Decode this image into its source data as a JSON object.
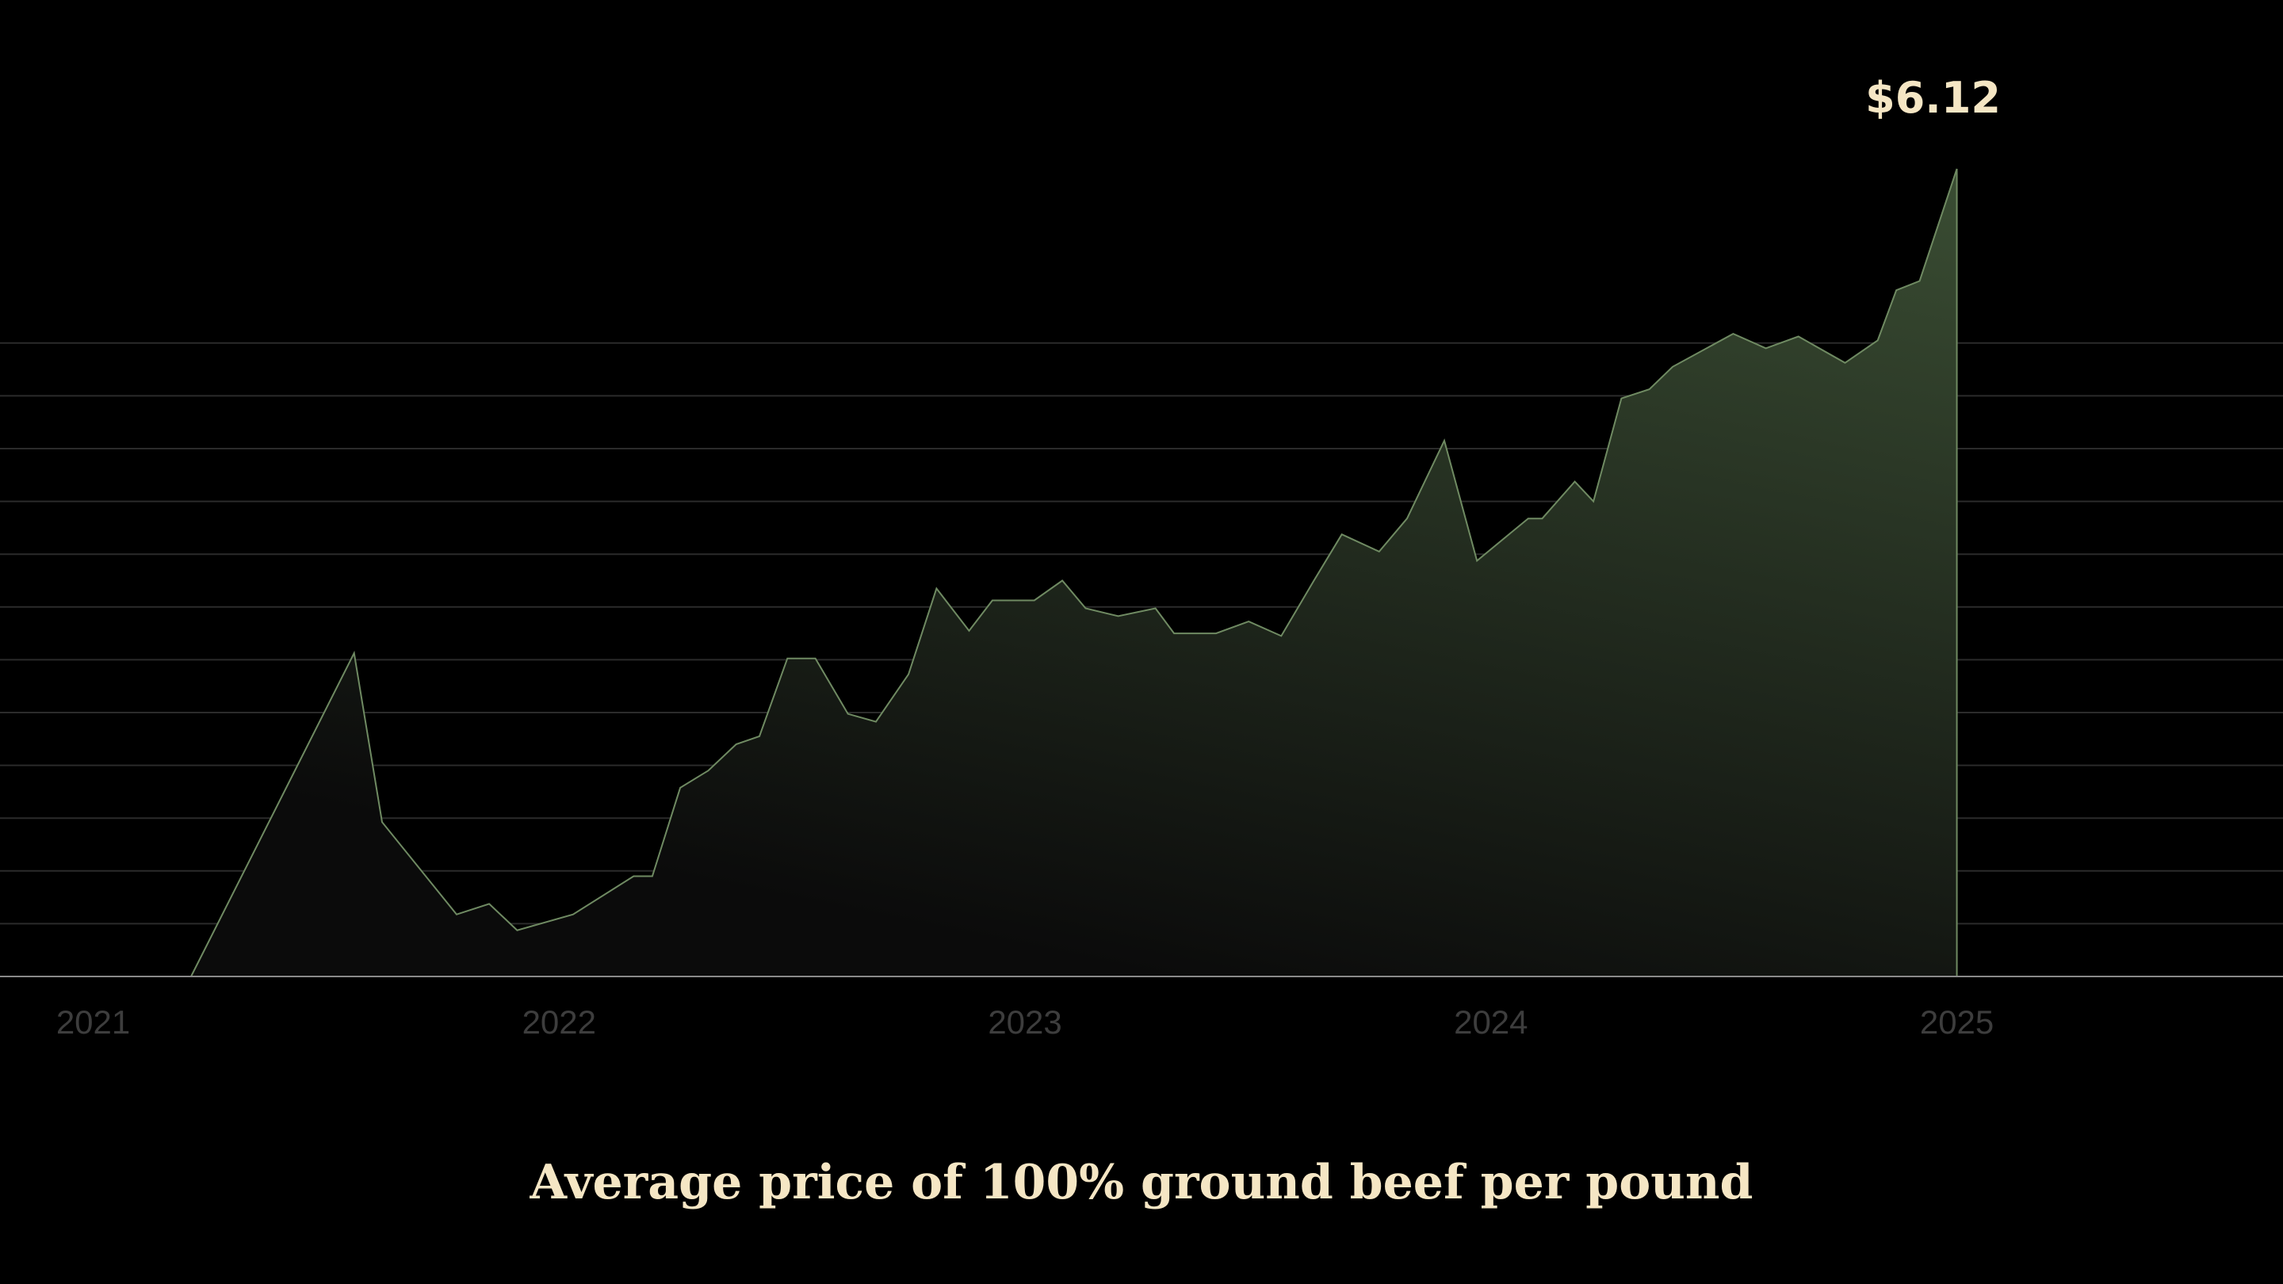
{
  "colors": {
    "background": "#000000",
    "fill_top": "#3a4d33",
    "fill_bottom": "#0b0b0b",
    "line": "#6f8a62",
    "grid": "#2b2b2b",
    "baseline": "#8a8a8a",
    "label": "#f5e6c4",
    "tick": "#3d3d3d"
  },
  "chart_data": {
    "type": "area",
    "title": "Average price of 100% ground beef per pound",
    "xlabel": "",
    "ylabel": "",
    "x_ticks": [
      "2021",
      "2022",
      "2023",
      "2024",
      "2025"
    ],
    "x_tick_values": [
      2021,
      2022,
      2023,
      2024,
      2025
    ],
    "xlim": [
      2020.8,
      2025.7
    ],
    "ylim": [
      0,
      6.12
    ],
    "grid": true,
    "grid_levels": [
      0.4,
      0.8,
      1.2,
      1.6,
      2.0,
      2.4,
      2.8,
      3.2,
      3.6,
      4.0,
      4.4,
      4.8
    ],
    "last_value_label": "$6.12",
    "series": [
      {
        "x": [
          2021.21,
          2021.56,
          2021.62,
          2021.78,
          2021.85,
          2021.91,
          2022.03,
          2022.16,
          2022.2,
          2022.26,
          2022.32,
          2022.38,
          2022.43,
          2022.49,
          2022.55,
          2022.62,
          2022.68,
          2022.75,
          2022.81,
          2022.88,
          2022.93,
          2023.02,
          2023.08,
          2023.13,
          2023.2,
          2023.28,
          2023.32,
          2023.41,
          2023.48,
          2023.55,
          2023.62,
          2023.68,
          2023.76,
          2023.82,
          2023.9,
          2023.97,
          2024.08,
          2024.11,
          2024.18,
          2024.22,
          2024.28,
          2024.34,
          2024.39,
          2024.52,
          2024.59,
          2024.66,
          2024.76,
          2024.83,
          2024.87,
          2024.92,
          2025.0
        ],
        "y": [
          0.0,
          2.45,
          1.17,
          0.47,
          0.55,
          0.35,
          0.47,
          0.76,
          0.76,
          1.43,
          1.56,
          1.76,
          1.82,
          2.41,
          2.41,
          1.99,
          1.93,
          2.29,
          2.94,
          2.62,
          2.85,
          2.85,
          3.0,
          2.79,
          2.73,
          2.79,
          2.6,
          2.6,
          2.69,
          2.58,
          3.0,
          3.35,
          3.22,
          3.47,
          4.06,
          3.15,
          3.47,
          3.47,
          3.75,
          3.6,
          4.38,
          4.45,
          4.62,
          4.87,
          4.76,
          4.85,
          4.65,
          4.82,
          5.2,
          5.27,
          6.12
        ]
      }
    ]
  }
}
